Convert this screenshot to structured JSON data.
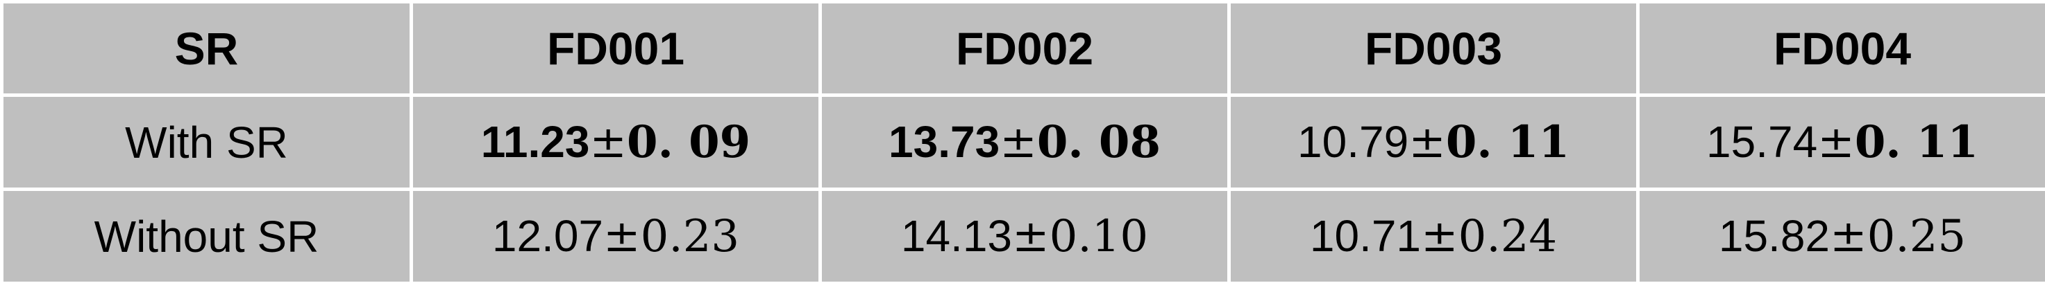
{
  "table": {
    "headers": [
      "SR",
      "FD001",
      "FD002",
      "FD003",
      "FD004"
    ],
    "rows": [
      {
        "label": "With SR",
        "cells": [
          {
            "mean": "11.23",
            "pm": "±",
            "std": "0. 09",
            "mean_bold": true,
            "std_bold": true
          },
          {
            "mean": "13.73",
            "pm": "±",
            "std": "0. 08",
            "mean_bold": true,
            "std_bold": true
          },
          {
            "mean": "10.79",
            "pm": "±",
            "std": "0. 11",
            "mean_bold": false,
            "std_bold": true
          },
          {
            "mean": "15.74",
            "pm": "±",
            "std": "0. 11",
            "mean_bold": false,
            "std_bold": true
          }
        ]
      },
      {
        "label": "Without SR",
        "cells": [
          {
            "mean": "12.07",
            "pm": "±",
            "std": "0.23",
            "mean_bold": false,
            "std_bold": false
          },
          {
            "mean": "14.13",
            "pm": "±",
            "std": "0.10",
            "mean_bold": false,
            "std_bold": false
          },
          {
            "mean": "10.71",
            "pm": "±",
            "std": "0.24",
            "mean_bold": false,
            "std_bold": false
          },
          {
            "mean": "15.82",
            "pm": "±",
            "std": "0.25",
            "mean_bold": false,
            "std_bold": false
          }
        ]
      }
    ]
  },
  "colors": {
    "cell_background": "#bfbfbf",
    "grid_lines": "#ffffff",
    "text": "#000000"
  }
}
